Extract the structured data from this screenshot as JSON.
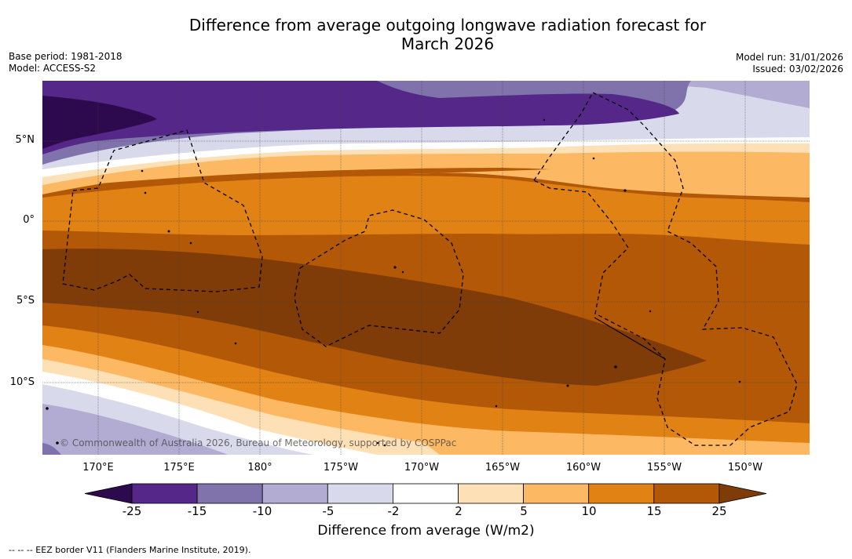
{
  "title_line1": "Difference from average outgoing longwave radiation forecast for",
  "title_line2": "March 2026",
  "meta_left": {
    "base_period": "Base period: 1981-2018",
    "model": "Model: ACCESS-S2"
  },
  "meta_right": {
    "model_run": "Model run: 31/01/2026",
    "issued": "Issued: 03/02/2026"
  },
  "copyright": "© Commonwealth of Australia 2026, Bureau of Meteorology, supported by COSPPac",
  "latitude_labels": [
    "5°N",
    "0°",
    "5°S",
    "10°S"
  ],
  "longitude_labels": [
    "170°E",
    "175°E",
    "180°",
    "175°W",
    "170°W",
    "165°W",
    "160°W",
    "155°W",
    "150°W"
  ],
  "colorbar": {
    "title": "Difference from average (W/m2)",
    "tick_labels": [
      "-25",
      "-15",
      "-10",
      "-5",
      "-2",
      "2",
      "5",
      "10",
      "15",
      "25"
    ],
    "colors": [
      "#2d0a4e",
      "#542788",
      "#8073ac",
      "#b2abd2",
      "#d8daeb",
      "#ffffff",
      "#fee0b6",
      "#fdb863",
      "#e08214",
      "#b35806",
      "#7f3b08"
    ]
  },
  "eez_legend": "--  --  -- EEZ border V11 (Flanders Marine Institute, 2019)."
}
